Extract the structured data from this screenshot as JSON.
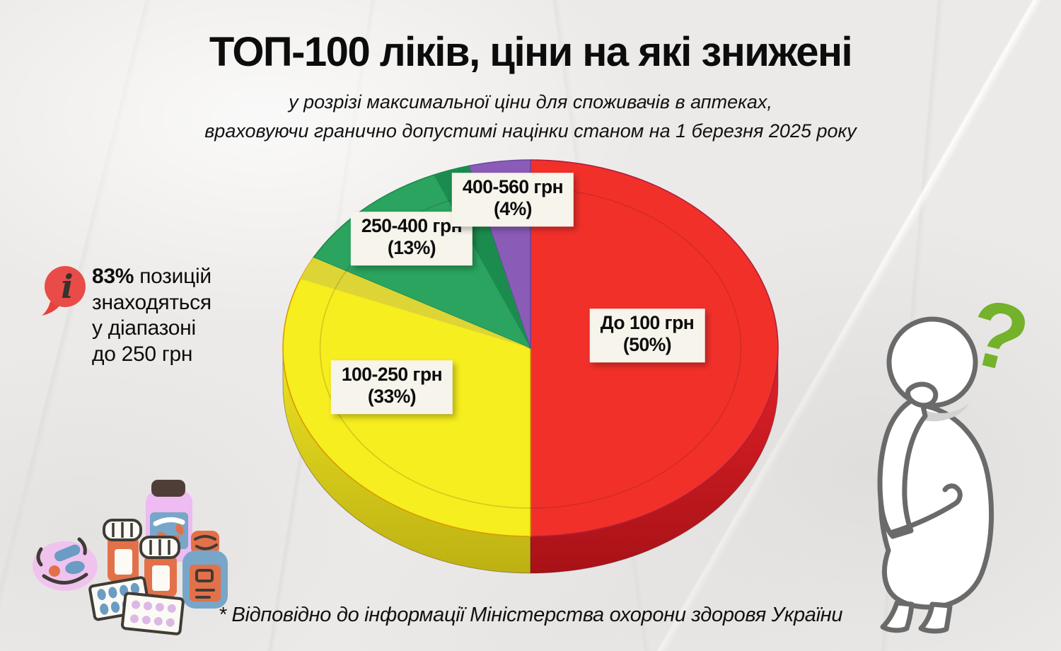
{
  "header": {
    "title": "ТОП-100 ліків, ціни на які знижені",
    "subtitle_line1": "у розрізі максимальної ціни для споживачів в аптеках,",
    "subtitle_line2": "враховуючи гранично допустимі націнки станом на 1 березня 2025 року"
  },
  "info_note": {
    "highlight": "83%",
    "line1_rest": " позицій",
    "line2": "знаходяться",
    "line3": "у діапазоні",
    "line4": "до 250 грн",
    "icon": "info-speech-bubble-icon",
    "icon_color": "#e8413d",
    "icon_glyph": "i"
  },
  "chart_data": {
    "type": "pie",
    "style": "3d",
    "title": "ТОП-100 ліків, ціни на які знижені",
    "unit": "грн",
    "start_angle_deg": 0,
    "direction": "clockwise",
    "legend_position": "labels-on-slices",
    "categories": [
      "До 100 грн",
      "100-250 грн",
      "250-400 грн",
      "400-560 грн"
    ],
    "values": [
      50,
      33,
      13,
      4
    ],
    "slices": [
      {
        "label": "До 100 грн",
        "percent": 50,
        "percent_text": "(50%)",
        "color": "#f2302a",
        "edge": "#b01f3a",
        "side_top": "#e12129",
        "side_bottom": "#a81217"
      },
      {
        "label": "100-250 грн",
        "percent": 33,
        "percent_text": "(33%)",
        "color": "#f6ee1e",
        "edge": "#d99a00",
        "side_top": "#ece321",
        "side_bottom": "#bdb113"
      },
      {
        "label": "250-400 грн",
        "percent": 13,
        "percent_text": "(13%)",
        "color": "#2aa45f",
        "edge": "#1d8a4d"
      },
      {
        "label": "400-560 грн",
        "percent": 4,
        "percent_text": "(4%)",
        "color": "#8a5cb8",
        "edge": "#6d46a0"
      }
    ]
  },
  "footnote": "* Відповідно до інформації Міністерства охорони здоровя України",
  "decor": {
    "question_mark": "?",
    "question_color": "#73b22a",
    "person": "thinking-person-illustration",
    "pills": "medicines-illustration"
  }
}
